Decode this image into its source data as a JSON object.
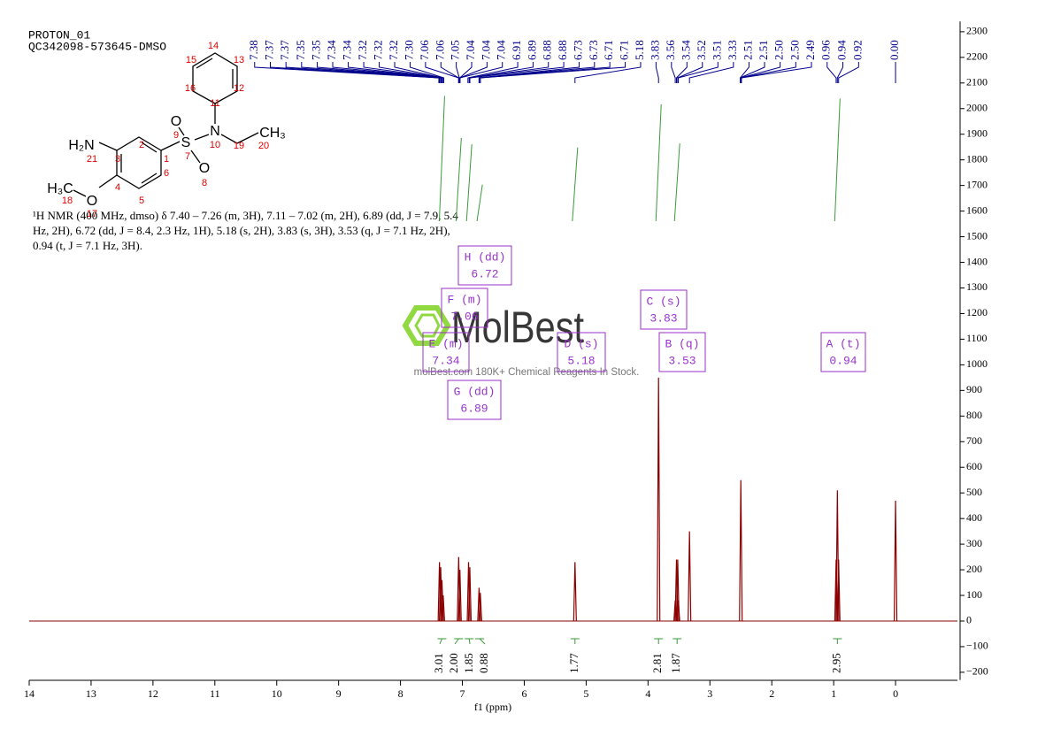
{
  "header": {
    "title": "PROTON_01",
    "sample": "QC342098-573645-DMSO"
  },
  "structure": {
    "atom_labels": [
      "H₂N",
      "O",
      "H₃C",
      "S",
      "O",
      "O",
      "N",
      "CH₃"
    ],
    "atom_numbers": [
      1,
      2,
      3,
      4,
      5,
      6,
      7,
      8,
      9,
      10,
      11,
      12,
      13,
      14,
      15,
      16,
      17,
      18,
      19,
      20,
      21
    ]
  },
  "description": [
    "¹H NMR (400 MHz, dmso) δ 7.40 – 7.26 (m, 3H), 7.11 – 7.02 (m, 2H), 6.89 (dd, J = 7.9, 5.4",
    "Hz, 2H), 6.72 (dd, J = 8.4, 2.3 Hz, 1H), 5.18 (s, 2H), 3.83 (s, 3H), 3.53 (q, J = 7.1 Hz, 2H),",
    "0.94 (t, J = 7.1 Hz, 3H)."
  ],
  "watermark": {
    "brand": "MolBest",
    "tagline": "molBest.com 180K+ Chemical Reagents In Stock."
  },
  "chart_data": {
    "type": "nmr",
    "x_label": "f1 (ppm)",
    "color": "#8b0000",
    "xlim": [
      14,
      -1
    ],
    "xticks": [
      14,
      13,
      12,
      11,
      10,
      9,
      8,
      7,
      6,
      5,
      4,
      3,
      2,
      1,
      0
    ],
    "ylim": [
      -230,
      2340
    ],
    "yticks": [
      {
        "value": -200,
        "label": "−200"
      },
      {
        "value": -100,
        "label": "−100"
      },
      0,
      100,
      200,
      300,
      400,
      500,
      600,
      700,
      800,
      900,
      1000,
      1100,
      1200,
      1300,
      1400,
      1500,
      1600,
      1700,
      1800,
      1900,
      2000,
      2100,
      2200,
      2300
    ],
    "spectrum": {
      "x": [
        7.37,
        7.35,
        7.33,
        7.31,
        7.06,
        7.04,
        6.9,
        6.88,
        6.73,
        6.71,
        5.18,
        3.83,
        3.56,
        3.54,
        3.52,
        3.51,
        3.33,
        2.5,
        0.96,
        0.94,
        0.92,
        0
      ],
      "values": [
        230,
        210,
        160,
        100,
        250,
        200,
        230,
        210,
        130,
        110,
        230,
        950,
        80,
        240,
        240,
        80,
        350,
        550,
        240,
        510,
        240,
        470
      ]
    },
    "peak_labels": {
      "x": [
        7.38,
        7.37,
        7.37,
        7.35,
        7.35,
        7.34,
        7.34,
        7.32,
        7.32,
        7.32,
        7.3,
        7.06,
        7.06,
        7.05,
        7.04,
        7.04,
        7.04,
        6.91,
        6.89,
        6.88,
        6.88,
        6.73,
        6.73,
        6.71,
        6.71,
        5.18,
        3.83,
        3.56,
        3.54,
        3.52,
        3.51,
        3.33,
        2.51,
        2.51,
        2.5,
        2.5,
        2.49,
        0.96,
        0.94,
        0.92,
        0
      ],
      "value_labels": [
        "7.38",
        "7.37",
        "7.37",
        "7.35",
        "7.35",
        "7.34",
        "7.34",
        "7.32",
        "7.32",
        "7.32",
        "7.30",
        "7.06",
        "7.06",
        "7.05",
        "7.04",
        "7.04",
        "7.04",
        "6.91",
        "6.89",
        "6.88",
        "6.88",
        "6.73",
        "6.73",
        "6.71",
        "6.71",
        "5.18",
        "3.83",
        "3.56",
        "3.54",
        "3.52",
        "3.51",
        "3.33",
        "2.51",
        "2.51",
        "2.50",
        "2.50",
        "2.49",
        "0.96",
        "0.94",
        "0.92",
        "0.00"
      ]
    },
    "integrals": {
      "x": [
        7.33,
        7.06,
        6.89,
        6.72,
        5.18,
        3.83,
        3.53,
        0.94
      ],
      "values": [
        3.01,
        2,
        1.85,
        0.88,
        1.77,
        2.81,
        1.87,
        2.95
      ],
      "value_labels": [
        "3.01",
        "2.00",
        "1.85",
        "0.88",
        "1.77",
        "2.81",
        "1.87",
        "2.95"
      ]
    },
    "multiplets": [
      {
        "label": "H (dd)",
        "shift": 6.72
      },
      {
        "label": "F (m)",
        "shift": 7.06
      },
      {
        "label": "E (m)",
        "shift": 7.34
      },
      {
        "label": "D (s)",
        "shift": 5.18
      },
      {
        "label": "C (s)",
        "shift": 3.83
      },
      {
        "label": "B (q)",
        "shift": 3.53
      },
      {
        "label": "A (t)",
        "shift": 0.94
      },
      {
        "label": "G (dd)",
        "shift": 6.89
      }
    ]
  }
}
